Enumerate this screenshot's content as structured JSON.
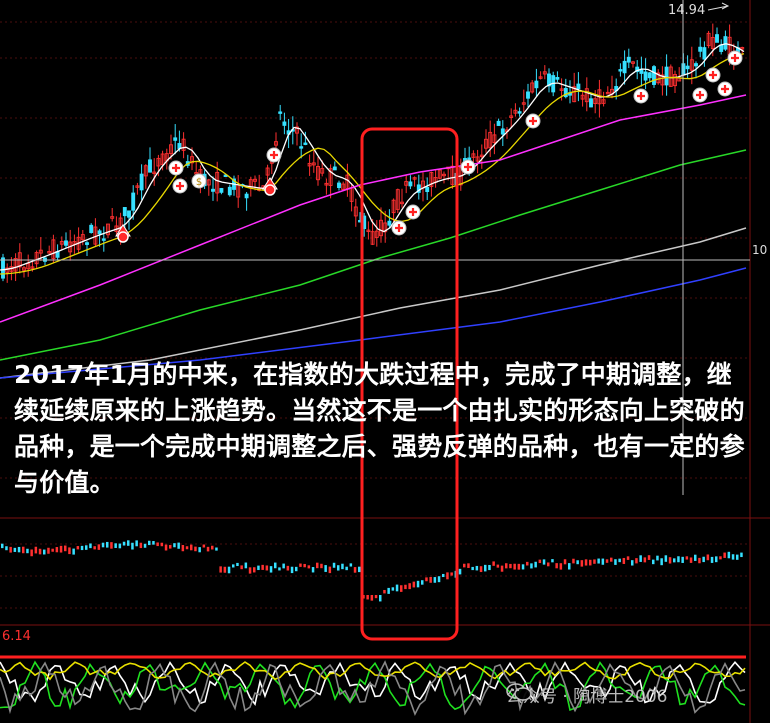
{
  "chart_data": {
    "type": "candlestick",
    "price_labels": {
      "high": "14.94",
      "current": "10",
      "indicator": "6.14"
    },
    "note": "2017年1月的中来，在指数的大跌过程中，完成了中期调整，继续延续原来的上涨趋势。当然这不是一个由扎实的形态向上突破的品种，是一个完成中期调整之后、强势反弹的品种，也有一定的参与价值。",
    "signals": [
      "+",
      "+",
      "$",
      "+",
      "+",
      "+",
      "+",
      "+",
      "+",
      "+",
      "+",
      "+"
    ]
  },
  "colors": {
    "up": "#ff3030",
    "down": "#36e0ff",
    "ma5": "#ffffff",
    "ma10": "#e8d800",
    "ma20": "#ff30ff",
    "ma60": "#28d828",
    "ma120": "#c8c8c8",
    "ma250": "#3040ff",
    "highlight": "#ff2020"
  },
  "watermark": {
    "text": "公众号 · 陶博士2006",
    "icon": "wechat-icon"
  }
}
